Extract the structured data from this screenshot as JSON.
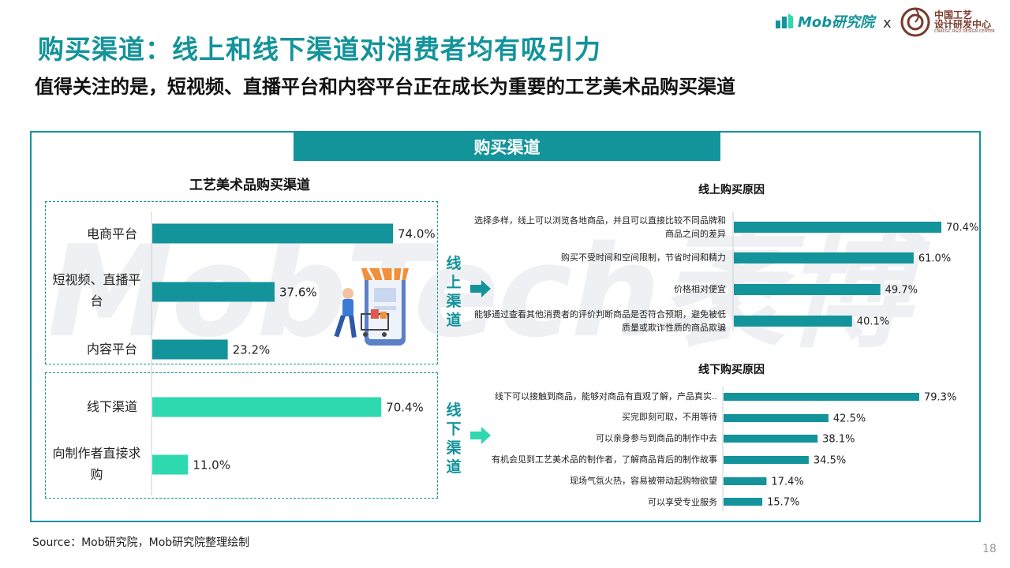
{
  "header": {
    "title": "购买渠道：线上和线下渠道对消费者均有吸引力",
    "subtitle": "值得关注的是，短视频、直播平台和内容平台正在成长为重要的工艺美术品购买渠道"
  },
  "logos": {
    "mob": "Mob研究院",
    "x": "x",
    "partner_line1": "中国工艺",
    "partner_line2": "设计研发中心",
    "partner_line3": "CNACGC R&D DESIGN CENTER"
  },
  "banner": "购买渠道",
  "watermark": "MobTech袤博",
  "labels": {
    "online_vertical": "线上渠道",
    "offline_vertical": "线下渠道"
  },
  "colors": {
    "teal": "#13939a",
    "mint": "#2ed9b0",
    "light_teal": "#2aa39f"
  },
  "chart_data": [
    {
      "type": "bar",
      "orientation": "horizontal",
      "title": "工艺美术品购买渠道",
      "categories": [
        "电商平台",
        "短视频、直播平台",
        "内容平台",
        "线下渠道",
        "向制作者直接求购"
      ],
      "values": [
        74.0,
        37.6,
        23.2,
        70.4,
        11.0
      ],
      "value_labels": [
        "74.0%",
        "37.6%",
        "23.2%",
        "70.4%",
        "11.0%"
      ],
      "groups": [
        "线上",
        "线上",
        "线上",
        "线下",
        "线下"
      ]
    },
    {
      "type": "bar",
      "orientation": "horizontal",
      "title": "线上购买原因",
      "categories": [
        "选择多样，线上可以浏览各地商品，并且可以直接比较不同品牌和商品之间的差异",
        "购买不受时间和空间限制，节省时间和精力",
        "价格相对便宜",
        "能够通过查看其他消费者的评价判断商品是否符合预期，避免被低质量或欺诈性质的商品欺骗"
      ],
      "values": [
        70.4,
        61.0,
        49.7,
        40.1
      ],
      "value_labels": [
        "70.4%",
        "61.0%",
        "49.7%",
        "40.1%"
      ]
    },
    {
      "type": "bar",
      "orientation": "horizontal",
      "title": "线下购买原因",
      "categories": [
        "线下可以接触到商品，能够对商品有直观了解，产品真实..",
        "买完即刻可取，不用等待",
        "可以亲身参与到商品的制作中去",
        "有机会见到工艺美术品的制作者，了解商品背后的制作故事",
        "现场气氛火热，容易被带动起购物欲望",
        "可以享受专业服务"
      ],
      "values": [
        79.3,
        42.5,
        38.1,
        34.5,
        17.4,
        15.7
      ],
      "value_labels": [
        "79.3%",
        "42.5%",
        "38.1%",
        "34.5%",
        "17.4%",
        "15.7%"
      ]
    }
  ],
  "footer": {
    "source": "Source：Mob研究院，Mob研究院整理绘制",
    "page": "18"
  }
}
